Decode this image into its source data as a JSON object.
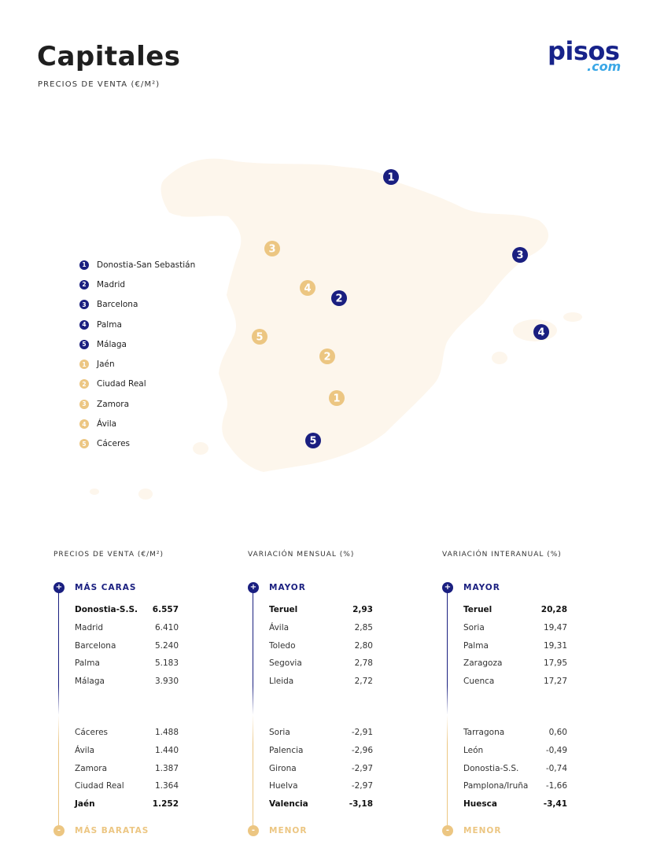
{
  "header": {
    "title": "Capitales",
    "subtitle": "PRECIOS DE VENTA (€/M²)"
  },
  "logo": {
    "main": "pisos",
    "sub": ".com"
  },
  "colors": {
    "navy": "#1a1f80",
    "gold": "#ecc682",
    "map_fill": "#fdf6ec"
  },
  "map": {
    "markers_top": [
      "1",
      "2",
      "3",
      "4",
      "5"
    ],
    "markers_bottom": [
      "1",
      "2",
      "3",
      "4",
      "5"
    ]
  },
  "legend": [
    {
      "num": "1",
      "label": "Donostia-San Sebastián",
      "color": "blue"
    },
    {
      "num": "2",
      "label": "Madrid",
      "color": "blue"
    },
    {
      "num": "3",
      "label": "Barcelona",
      "color": "blue"
    },
    {
      "num": "4",
      "label": "Palma",
      "color": "blue"
    },
    {
      "num": "5",
      "label": "Málaga",
      "color": "blue"
    },
    {
      "num": "1",
      "label": "Jaén",
      "color": "gold"
    },
    {
      "num": "2",
      "label": "Ciudad Real",
      "color": "gold"
    },
    {
      "num": "3",
      "label": "Zamora",
      "color": "gold"
    },
    {
      "num": "4",
      "label": "Ávila",
      "color": "gold"
    },
    {
      "num": "5",
      "label": "Cáceres",
      "color": "gold"
    }
  ],
  "columns": [
    {
      "heading": "PRECIOS DE VENTA (€/M²)",
      "top_label": "MÁS CARAS",
      "bottom_label": "MÁS BARATAS",
      "top_rows": [
        {
          "name": "Donostia-S.S.",
          "value": "6.557"
        },
        {
          "name": "Madrid",
          "value": "6.410"
        },
        {
          "name": "Barcelona",
          "value": "5.240"
        },
        {
          "name": "Palma",
          "value": "5.183"
        },
        {
          "name": "Málaga",
          "value": "3.930"
        }
      ],
      "bottom_rows": [
        {
          "name": "Cáceres",
          "value": "1.488"
        },
        {
          "name": "Ávila",
          "value": "1.440"
        },
        {
          "name": "Zamora",
          "value": "1.387"
        },
        {
          "name": "Ciudad Real",
          "value": "1.364"
        },
        {
          "name": "Jaén",
          "value": "1.252"
        }
      ]
    },
    {
      "heading": "VARIACIÓN MENSUAL (%)",
      "top_label": "MAYOR",
      "bottom_label": "MENOR",
      "top_rows": [
        {
          "name": "Teruel",
          "value": "2,93"
        },
        {
          "name": "Ávila",
          "value": "2,85"
        },
        {
          "name": "Toledo",
          "value": "2,80"
        },
        {
          "name": "Segovia",
          "value": "2,78"
        },
        {
          "name": "Lleida",
          "value": "2,72"
        }
      ],
      "bottom_rows": [
        {
          "name": "Soria",
          "value": "-2,91"
        },
        {
          "name": "Palencia",
          "value": "-2,96"
        },
        {
          "name": "Girona",
          "value": "-2,97"
        },
        {
          "name": "Huelva",
          "value": "-2,97"
        },
        {
          "name": "Valencia",
          "value": "-3,18"
        }
      ]
    },
    {
      "heading": "VARIACIÓN INTERANUAL (%)",
      "top_label": "MAYOR",
      "bottom_label": "MENOR",
      "top_rows": [
        {
          "name": "Teruel",
          "value": "20,28"
        },
        {
          "name": "Soria",
          "value": "19,47"
        },
        {
          "name": "Palma",
          "value": "19,31"
        },
        {
          "name": "Zaragoza",
          "value": "17,95"
        },
        {
          "name": "Cuenca",
          "value": "17,27"
        }
      ],
      "bottom_rows": [
        {
          "name": "Tarragona",
          "value": "0,60"
        },
        {
          "name": "León",
          "value": "-0,49"
        },
        {
          "name": "Donostia-S.S.",
          "value": "-0,74"
        },
        {
          "name": "Pamplona/Iruña",
          "value": "-1,66"
        },
        {
          "name": "Huesca",
          "value": "-3,41"
        }
      ]
    }
  ],
  "symbols": {
    "plus": "+",
    "minus": "-"
  }
}
